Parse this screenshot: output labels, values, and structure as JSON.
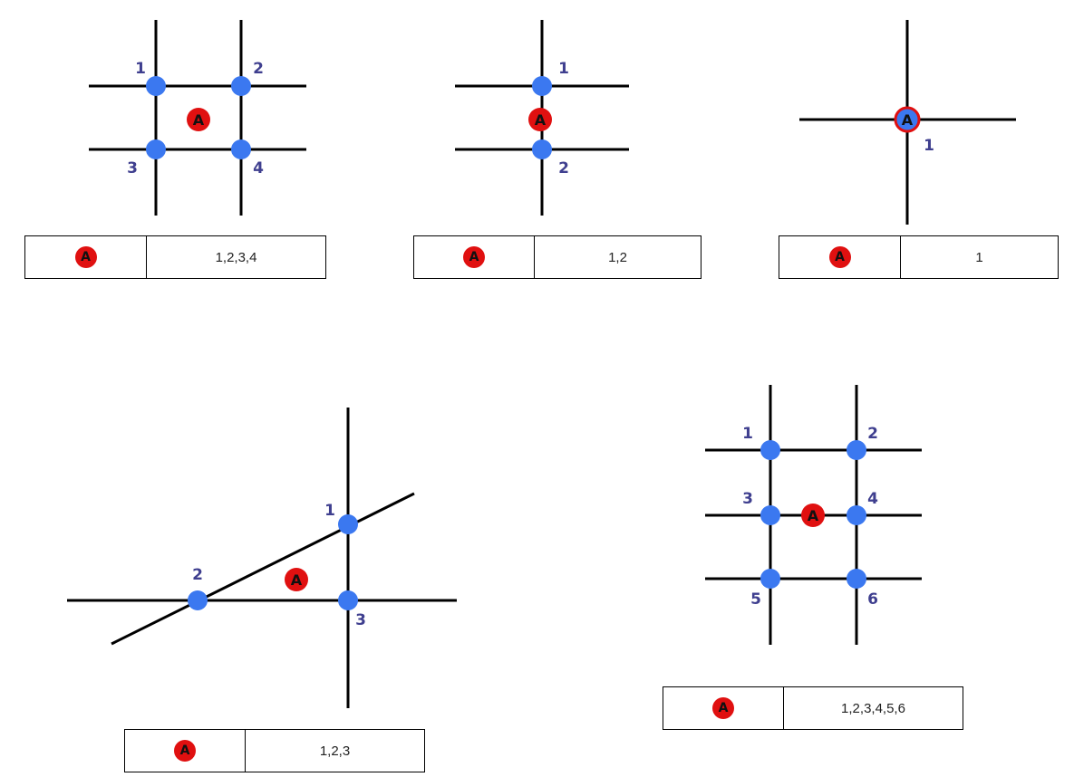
{
  "marker_label": "A",
  "colors": {
    "line": "#000000",
    "node": "#3b78f0",
    "marker": "#e01010",
    "number_text": "#3f3f8f"
  },
  "diagrams": [
    {
      "node_labels": [
        "1",
        "2",
        "3",
        "4"
      ],
      "table_value": "1,2,3,4"
    },
    {
      "node_labels": [
        "1",
        "2"
      ],
      "table_value": "1,2"
    },
    {
      "node_labels": [
        "1"
      ],
      "table_value": "1"
    },
    {
      "node_labels": [
        "1",
        "2",
        "3"
      ],
      "table_value": "1,2,3"
    },
    {
      "node_labels": [
        "1",
        "2",
        "3",
        "4",
        "5",
        "6"
      ],
      "table_value": "1,2,3,4,5,6"
    }
  ]
}
